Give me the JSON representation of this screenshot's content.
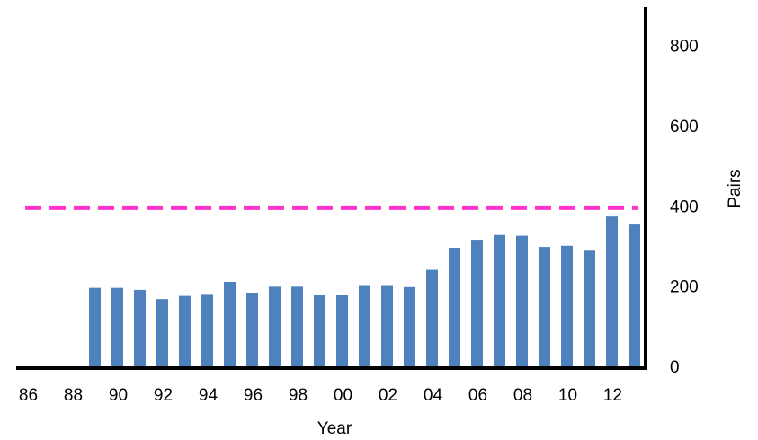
{
  "chart_data": {
    "type": "bar",
    "categories": [
      "86",
      null,
      "88",
      null,
      "90",
      null,
      "92",
      null,
      "94",
      null,
      "96",
      null,
      "98",
      null,
      "00",
      null,
      "02",
      null,
      "04",
      null,
      "06",
      null,
      "08",
      null,
      "10",
      null,
      "12",
      null
    ],
    "values": [
      null,
      null,
      null,
      200,
      200,
      195,
      172,
      180,
      185,
      215,
      188,
      203,
      203,
      182,
      182,
      207,
      207,
      202,
      245,
      300,
      320,
      332,
      330,
      302,
      305,
      295,
      378,
      358
    ],
    "color": "#4f81bd",
    "x_label": "Year",
    "y_label": "Pairs",
    "ylim": [
      0,
      900
    ],
    "yticks": [
      0,
      200,
      400,
      600,
      800
    ],
    "reference_line": {
      "value": 400,
      "color": "#ff33cc"
    }
  }
}
